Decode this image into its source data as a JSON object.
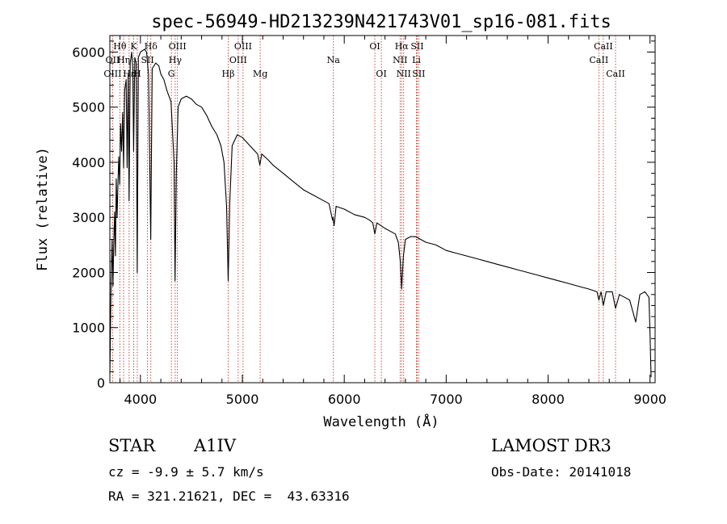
{
  "chart_data": {
    "type": "line",
    "title": "spec-56949-HD213239N421743V01_sp16-081.fits",
    "xlabel": "Wavelength (Å)",
    "ylabel": "Flux (relative)",
    "xlim": [
      3700,
      9050
    ],
    "ylim": [
      0,
      6300
    ],
    "xticks": [
      4000,
      5000,
      6000,
      7000,
      8000,
      9000
    ],
    "yticks": [
      0,
      1000,
      2000,
      3000,
      4000,
      5000,
      6000
    ],
    "grid": false,
    "series": [
      {
        "name": "spectrum",
        "color": "#000000",
        "points": [
          [
            3700,
            150
          ],
          [
            3712,
            1800
          ],
          [
            3722,
            2600
          ],
          [
            3730,
            1750
          ],
          [
            3738,
            2500
          ],
          [
            3747,
            3100
          ],
          [
            3755,
            2300
          ],
          [
            3763,
            3700
          ],
          [
            3771,
            3000
          ],
          [
            3779,
            3600
          ],
          [
            3787,
            4100
          ],
          [
            3797,
            3600
          ],
          [
            3805,
            4700
          ],
          [
            3815,
            4200
          ],
          [
            3825,
            4900
          ],
          [
            3835,
            3900
          ],
          [
            3845,
            5300
          ],
          [
            3860,
            5500
          ],
          [
            3870,
            3900
          ],
          [
            3880,
            5600
          ],
          [
            3889,
            3300
          ],
          [
            3900,
            5800
          ],
          [
            3915,
            6000
          ],
          [
            3925,
            5700
          ],
          [
            3933,
            4200
          ],
          [
            3945,
            5900
          ],
          [
            3958,
            5800
          ],
          [
            3969,
            2000
          ],
          [
            3980,
            5900
          ],
          [
            4000,
            6000
          ],
          [
            4040,
            6050
          ],
          [
            4060,
            6000
          ],
          [
            4080,
            5600
          ],
          [
            4101,
            2600
          ],
          [
            4115,
            5700
          ],
          [
            4150,
            5800
          ],
          [
            4180,
            5750
          ],
          [
            4200,
            5600
          ],
          [
            4230,
            5500
          ],
          [
            4260,
            5300
          ],
          [
            4300,
            5100
          ],
          [
            4330,
            4000
          ],
          [
            4340,
            1850
          ],
          [
            4352,
            3800
          ],
          [
            4370,
            5000
          ],
          [
            4400,
            5150
          ],
          [
            4450,
            5200
          ],
          [
            4500,
            5150
          ],
          [
            4550,
            5050
          ],
          [
            4600,
            5000
          ],
          [
            4650,
            4850
          ],
          [
            4700,
            4650
          ],
          [
            4750,
            4500
          ],
          [
            4790,
            4300
          ],
          [
            4820,
            4000
          ],
          [
            4845,
            3200
          ],
          [
            4861,
            1850
          ],
          [
            4877,
            3300
          ],
          [
            4900,
            4300
          ],
          [
            4950,
            4500
          ],
          [
            5000,
            4450
          ],
          [
            5050,
            4350
          ],
          [
            5100,
            4250
          ],
          [
            5150,
            4150
          ],
          [
            5172,
            3950
          ],
          [
            5190,
            4150
          ],
          [
            5250,
            4050
          ],
          [
            5300,
            3950
          ],
          [
            5400,
            3800
          ],
          [
            5500,
            3650
          ],
          [
            5600,
            3500
          ],
          [
            5700,
            3400
          ],
          [
            5800,
            3300
          ],
          [
            5850,
            3250
          ],
          [
            5885,
            2950
          ],
          [
            5890,
            3000
          ],
          [
            5900,
            2850
          ],
          [
            5920,
            3200
          ],
          [
            6000,
            3150
          ],
          [
            6100,
            3050
          ],
          [
            6200,
            3000
          ],
          [
            6250,
            2950
          ],
          [
            6280,
            2900
          ],
          [
            6300,
            2700
          ],
          [
            6320,
            2900
          ],
          [
            6400,
            2800
          ],
          [
            6450,
            2750
          ],
          [
            6500,
            2700
          ],
          [
            6530,
            2550
          ],
          [
            6550,
            2200
          ],
          [
            6563,
            1700
          ],
          [
            6580,
            2300
          ],
          [
            6600,
            2600
          ],
          [
            6650,
            2650
          ],
          [
            6700,
            2650
          ],
          [
            6800,
            2550
          ],
          [
            6900,
            2500
          ],
          [
            7000,
            2400
          ],
          [
            7100,
            2350
          ],
          [
            7200,
            2300
          ],
          [
            7300,
            2250
          ],
          [
            7400,
            2200
          ],
          [
            7500,
            2150
          ],
          [
            7600,
            2100
          ],
          [
            7700,
            2050
          ],
          [
            7800,
            2000
          ],
          [
            7900,
            1950
          ],
          [
            8000,
            1900
          ],
          [
            8100,
            1850
          ],
          [
            8200,
            1800
          ],
          [
            8300,
            1750
          ],
          [
            8400,
            1700
          ],
          [
            8480,
            1650
          ],
          [
            8498,
            1500
          ],
          [
            8520,
            1650
          ],
          [
            8542,
            1400
          ],
          [
            8570,
            1650
          ],
          [
            8600,
            1650
          ],
          [
            8630,
            1650
          ],
          [
            8662,
            1350
          ],
          [
            8700,
            1600
          ],
          [
            8750,
            1550
          ],
          [
            8800,
            1500
          ],
          [
            8860,
            1100
          ],
          [
            8900,
            1600
          ],
          [
            8950,
            1650
          ],
          [
            8990,
            1550
          ],
          [
            9000,
            900
          ],
          [
            9010,
            100
          ]
        ]
      }
    ],
    "annotations": [
      {
        "label": "Hθ",
        "wavelength": 3798,
        "row": 0
      },
      {
        "label": "OII",
        "wavelength": 3727,
        "row": 1
      },
      {
        "label": "OIII",
        "wavelength": 3727,
        "row": 2
      },
      {
        "label": "Hη",
        "wavelength": 3835,
        "row": 1
      },
      {
        "label": "Hε",
        "wavelength": 3889,
        "row": 2
      },
      {
        "label": "K",
        "wavelength": 3934,
        "row": 0
      },
      {
        "label": "Hδ",
        "wavelength": 4102,
        "row": 0
      },
      {
        "label": "SII",
        "wavelength": 4069,
        "row": 1
      },
      {
        "label": "H",
        "wavelength": 3969,
        "row": 2
      },
      {
        "label": "OIII",
        "wavelength": 4363,
        "row": 0
      },
      {
        "label": "Hγ",
        "wavelength": 4341,
        "row": 1
      },
      {
        "label": "G",
        "wavelength": 4304,
        "row": 2
      },
      {
        "label": "OIII",
        "wavelength": 5007,
        "row": 0
      },
      {
        "label": "OIII",
        "wavelength": 4959,
        "row": 1
      },
      {
        "label": "Hβ",
        "wavelength": 4861,
        "row": 2
      },
      {
        "label": "Mg",
        "wavelength": 5175,
        "row": 2
      },
      {
        "label": "Na",
        "wavelength": 5893,
        "row": 1
      },
      {
        "label": "OI",
        "wavelength": 6300,
        "row": 0
      },
      {
        "label": "OI",
        "wavelength": 6364,
        "row": 2
      },
      {
        "label": "Hα",
        "wavelength": 6563,
        "row": 0
      },
      {
        "label": "NII",
        "wavelength": 6548,
        "row": 1
      },
      {
        "label": "NII",
        "wavelength": 6583,
        "row": 2
      },
      {
        "label": "SII",
        "wavelength": 6716,
        "row": 0
      },
      {
        "label": "Li",
        "wavelength": 6708,
        "row": 1
      },
      {
        "label": "SII",
        "wavelength": 6731,
        "row": 2
      },
      {
        "label": "CaII",
        "wavelength": 8542,
        "row": 0
      },
      {
        "label": "CaII",
        "wavelength": 8498,
        "row": 1
      },
      {
        "label": "CaII",
        "wavelength": 8662,
        "row": 2
      }
    ],
    "marker_lines": [
      3727,
      3798,
      3835,
      3889,
      3934,
      3969,
      4069,
      4102,
      4304,
      4341,
      4363,
      4861,
      4959,
      5007,
      5175,
      5893,
      6300,
      6364,
      6548,
      6563,
      6583,
      6708,
      6716,
      6731,
      8498,
      8542,
      8662
    ],
    "marker_color": "#c0392b"
  },
  "info": {
    "object_class": "STAR",
    "subclass": "A1IV",
    "survey": "LAMOST DR3",
    "cz": "cz = -9.9 ± 5.7 km/s",
    "obs_date": "Obs-Date: 20141018",
    "coords": "RA = 321.21621, DEC =  43.63316"
  }
}
